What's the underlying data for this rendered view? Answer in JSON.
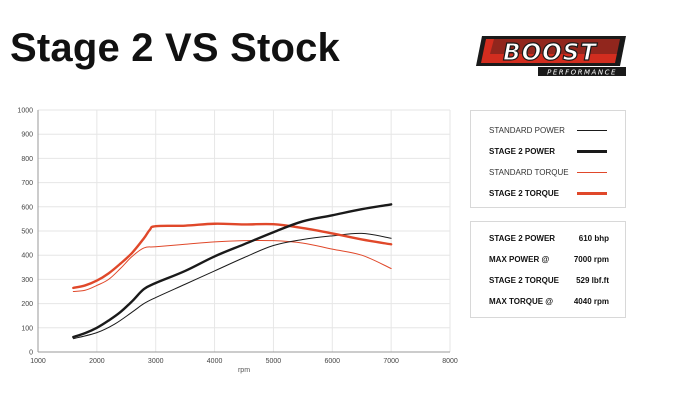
{
  "title": "Stage 2 VS Stock",
  "logo": {
    "primary": "BOOST",
    "secondary": "PERFORMANCE"
  },
  "colors": {
    "black": "#1a1a1a",
    "orange": "#e0482a",
    "grid": "#e6e6e6",
    "axis": "#999999"
  },
  "legend": [
    {
      "label": "STANDARD POWER",
      "color": "#1a1a1a",
      "weight": "thin"
    },
    {
      "label": "STAGE 2 POWER",
      "color": "#1a1a1a",
      "weight": "thick"
    },
    {
      "label": "STANDARD TORQUE",
      "color": "#e0482a",
      "weight": "thin"
    },
    {
      "label": "STAGE 2 TORQUE",
      "color": "#e0482a",
      "weight": "thick"
    }
  ],
  "stats": [
    {
      "label": "STAGE 2 POWER",
      "value": "610 bhp"
    },
    {
      "label": "MAX POWER @",
      "value": "7000 rpm"
    },
    {
      "label": "STAGE 2 TORQUE",
      "value": "529 lbf.ft"
    },
    {
      "label": "MAX TORQUE @",
      "value": "4040 rpm"
    }
  ],
  "chart_data": {
    "type": "line",
    "xlabel": "rpm",
    "ylabel": "",
    "xlim": [
      1000,
      8000
    ],
    "ylim": [
      0,
      1000
    ],
    "xticks": [
      1000,
      2000,
      3000,
      4000,
      5000,
      6000,
      7000,
      8000
    ],
    "yticks": [
      0,
      100,
      200,
      300,
      400,
      500,
      600,
      700,
      800,
      900,
      1000
    ],
    "grid": true,
    "legend_position": "right",
    "series": [
      {
        "name": "STANDARD POWER",
        "color": "#1a1a1a",
        "width": 1,
        "points": [
          [
            1600,
            55
          ],
          [
            2000,
            80
          ],
          [
            2300,
            115
          ],
          [
            2600,
            165
          ],
          [
            2800,
            200
          ],
          [
            3000,
            225
          ],
          [
            3500,
            280
          ],
          [
            4000,
            335
          ],
          [
            4500,
            390
          ],
          [
            5000,
            440
          ],
          [
            5500,
            465
          ],
          [
            6000,
            480
          ],
          [
            6500,
            490
          ],
          [
            7000,
            470
          ]
        ]
      },
      {
        "name": "STAGE 2 POWER",
        "color": "#1a1a1a",
        "width": 2.4,
        "points": [
          [
            1600,
            62
          ],
          [
            1800,
            78
          ],
          [
            2000,
            100
          ],
          [
            2200,
            130
          ],
          [
            2400,
            165
          ],
          [
            2600,
            210
          ],
          [
            2800,
            260
          ],
          [
            3000,
            285
          ],
          [
            3500,
            335
          ],
          [
            4000,
            395
          ],
          [
            4500,
            445
          ],
          [
            5000,
            495
          ],
          [
            5500,
            540
          ],
          [
            6000,
            565
          ],
          [
            6500,
            590
          ],
          [
            7000,
            610
          ]
        ]
      },
      {
        "name": "STANDARD TORQUE",
        "color": "#e0482a",
        "width": 1,
        "points": [
          [
            1600,
            250
          ],
          [
            1800,
            255
          ],
          [
            2000,
            275
          ],
          [
            2200,
            300
          ],
          [
            2400,
            345
          ],
          [
            2600,
            395
          ],
          [
            2800,
            430
          ],
          [
            3000,
            435
          ],
          [
            3500,
            445
          ],
          [
            4000,
            455
          ],
          [
            4500,
            460
          ],
          [
            5000,
            460
          ],
          [
            5500,
            450
          ],
          [
            6000,
            425
          ],
          [
            6500,
            400
          ],
          [
            7000,
            345
          ]
        ]
      },
      {
        "name": "STAGE 2 TORQUE",
        "color": "#e0482a",
        "width": 2.4,
        "points": [
          [
            1600,
            265
          ],
          [
            1800,
            275
          ],
          [
            2000,
            295
          ],
          [
            2200,
            325
          ],
          [
            2400,
            365
          ],
          [
            2600,
            410
          ],
          [
            2800,
            470
          ],
          [
            2900,
            505
          ],
          [
            3000,
            520
          ],
          [
            3500,
            522
          ],
          [
            4000,
            530
          ],
          [
            4500,
            527
          ],
          [
            5000,
            528
          ],
          [
            5500,
            512
          ],
          [
            6000,
            490
          ],
          [
            6500,
            465
          ],
          [
            7000,
            445
          ]
        ]
      }
    ]
  }
}
